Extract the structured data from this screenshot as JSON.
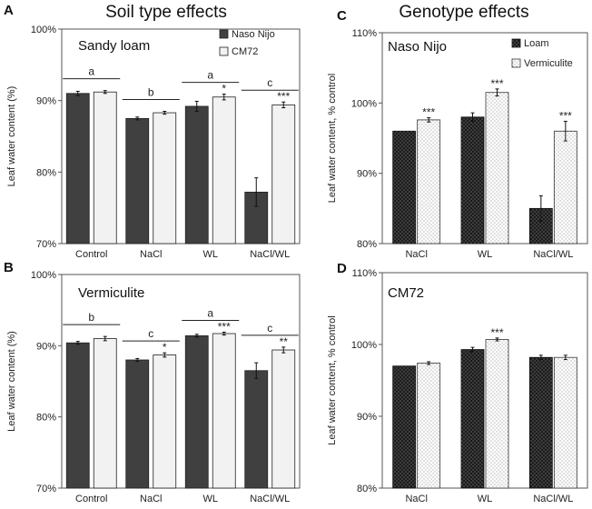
{
  "figure": {
    "header_left": "Soil type effects",
    "header_right": "Genotype effects"
  },
  "chart_data": [
    {
      "id": "A",
      "panel_label": "A",
      "type": "bar",
      "title": "Sandy loam",
      "categories": [
        "Control",
        "NaCl",
        "WL",
        "NaCl/WL"
      ],
      "series": [
        {
          "name": "Naso Nijo",
          "values": [
            91.0,
            87.5,
            89.2,
            77.2
          ],
          "errors": [
            0.3,
            0.2,
            0.7,
            2.0
          ]
        },
        {
          "name": "CM72",
          "values": [
            91.2,
            88.3,
            90.5,
            89.4
          ],
          "errors": [
            0.2,
            0.2,
            0.4,
            0.4
          ]
        }
      ],
      "ylabel": "Leaf water content (%)",
      "ylim": [
        70,
        100
      ],
      "yticks": [
        70,
        80,
        90,
        100
      ],
      "ytick_labels": [
        "70%",
        "80%",
        "90%",
        "100%"
      ],
      "legend_position": "top-right",
      "group_letters": [
        "a",
        "b",
        "a",
        "c"
      ],
      "stars": [
        [
          "",
          ""
        ],
        [
          "",
          ""
        ],
        [
          "",
          "*"
        ],
        [
          "",
          "***"
        ]
      ]
    },
    {
      "id": "B",
      "panel_label": "B",
      "type": "bar",
      "title": "Vermiculite",
      "categories": [
        "Control",
        "NaCl",
        "WL",
        "NaCl/WL"
      ],
      "series": [
        {
          "name": "Naso Nijo",
          "values": [
            90.4,
            88.0,
            91.4,
            86.5
          ],
          "errors": [
            0.2,
            0.2,
            0.2,
            1.1
          ]
        },
        {
          "name": "CM72",
          "values": [
            91.0,
            88.7,
            91.7,
            89.4
          ],
          "errors": [
            0.3,
            0.3,
            0.2,
            0.4
          ]
        }
      ],
      "ylabel": "Leaf water content (%)",
      "ylim": [
        70,
        100
      ],
      "yticks": [
        70,
        80,
        90,
        100
      ],
      "ytick_labels": [
        "70%",
        "80%",
        "90%",
        "100%"
      ],
      "group_letters": [
        "b",
        "c",
        "a",
        "c"
      ],
      "stars": [
        [
          "",
          ""
        ],
        [
          "",
          "*"
        ],
        [
          "",
          "***"
        ],
        [
          "",
          "**"
        ]
      ]
    },
    {
      "id": "C",
      "panel_label": "C",
      "type": "bar",
      "title": "Naso Nijo",
      "categories": [
        "NaCl",
        "WL",
        "NaCl/WL"
      ],
      "series": [
        {
          "name": "Loam",
          "values": [
            96.0,
            98.0,
            85.0
          ],
          "errors": [
            0.0,
            0.6,
            1.8
          ]
        },
        {
          "name": "Vermiculite",
          "values": [
            97.6,
            101.5,
            96.0
          ],
          "errors": [
            0.3,
            0.5,
            1.4
          ]
        }
      ],
      "ylabel": "Leaf water content, % control",
      "ylim": [
        80,
        110
      ],
      "yticks": [
        80,
        90,
        100,
        110
      ],
      "ytick_labels": [
        "80%",
        "90%",
        "100%",
        "110%"
      ],
      "legend_position": "top-right",
      "stars": [
        [
          "",
          "***"
        ],
        [
          "",
          "***"
        ],
        [
          "",
          "***"
        ]
      ]
    },
    {
      "id": "D",
      "panel_label": "D",
      "type": "bar",
      "title": "CM72",
      "categories": [
        "NaCl",
        "WL",
        "NaCl/WL"
      ],
      "series": [
        {
          "name": "Loam",
          "values": [
            97.0,
            99.3,
            98.2
          ],
          "errors": [
            0.0,
            0.3,
            0.3
          ]
        },
        {
          "name": "Vermiculite",
          "values": [
            97.4,
            100.7,
            98.2
          ],
          "errors": [
            0.2,
            0.2,
            0.3
          ]
        }
      ],
      "ylabel": "Leaf water content, % control",
      "ylim": [
        80,
        110
      ],
      "yticks": [
        80,
        90,
        100,
        110
      ],
      "ytick_labels": [
        "80%",
        "90%",
        "100%",
        "110%"
      ],
      "stars": [
        [
          "",
          ""
        ],
        [
          "",
          "***"
        ],
        [
          "",
          ""
        ]
      ]
    }
  ]
}
